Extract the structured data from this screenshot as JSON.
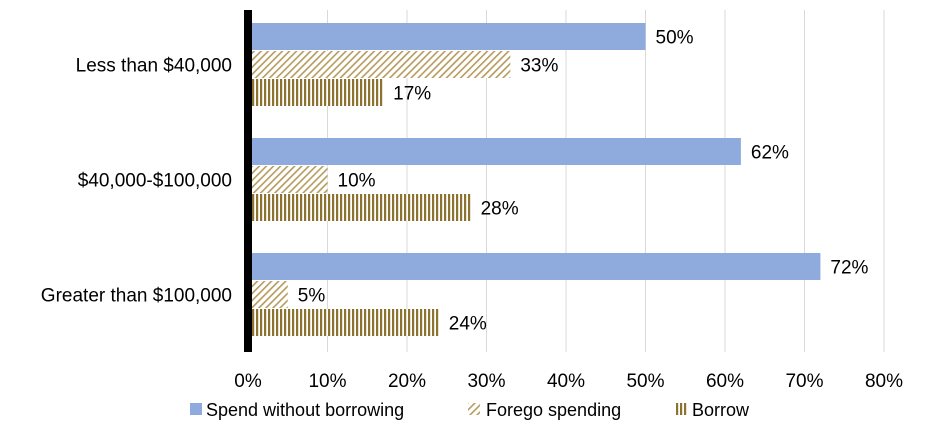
{
  "chart_data": {
    "type": "bar",
    "orientation": "horizontal",
    "categories": [
      "Less than $40,000",
      "$40,000-$100,000",
      "Greater than $100,000"
    ],
    "series": [
      {
        "name": "Spend without borrowing",
        "values": [
          50,
          62,
          72
        ],
        "color": "#8faadc",
        "fill": "solid"
      },
      {
        "name": "Forego spending",
        "values": [
          33,
          10,
          5
        ],
        "color": "#b59b5e",
        "fill": "diagonal-hatch"
      },
      {
        "name": "Borrow",
        "values": [
          17,
          28,
          24
        ],
        "color": "#8c7430",
        "fill": "vertical-stripes"
      }
    ],
    "data_labels": [
      [
        "50%",
        "33%",
        "17%"
      ],
      [
        "62%",
        "10%",
        "28%"
      ],
      [
        "72%",
        "5%",
        "24%"
      ]
    ],
    "xlim": [
      0,
      80
    ],
    "xticks": [
      0,
      10,
      20,
      30,
      40,
      50,
      60,
      70,
      80
    ],
    "xtick_labels": [
      "0%",
      "10%",
      "20%",
      "30%",
      "40%",
      "50%",
      "60%",
      "70%",
      "80%"
    ],
    "grid": "vertical",
    "legend_position": "bottom",
    "title": "",
    "xlabel": "",
    "ylabel": ""
  },
  "colors": {
    "gridline": "#d9d9d9",
    "axis": "#000000",
    "text": "#000000"
  }
}
